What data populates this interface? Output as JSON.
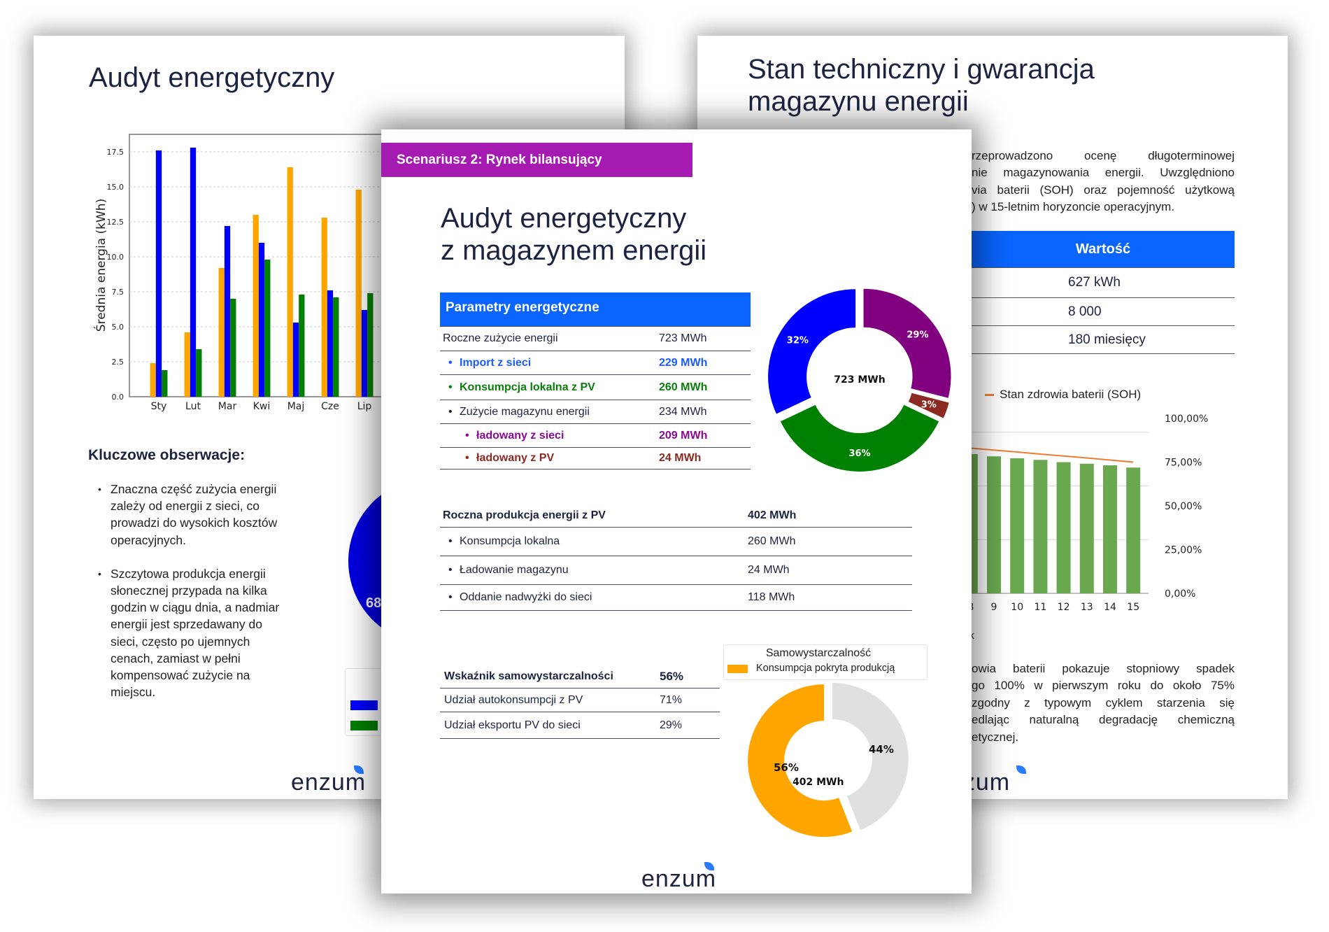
{
  "colors": {
    "orange": "#ffa500",
    "blue": "#0000ff",
    "green": "#008000",
    "purple": "#800080",
    "brown": "#8b2a22",
    "grey": "#e0e0e0",
    "header_blue": "#0a64ff",
    "banner_purple": "#a51ab1",
    "soh_bar": "#6aa84f",
    "soh_line": "#ed7d31"
  },
  "left_page": {
    "title": "Audyt energetyczny",
    "observations_heading": "Kluczowe obserwacje:",
    "observations": [
      [
        "Znaczna część zużycia energii",
        "zależy od energii z sieci, co",
        "prowadzi do wysokich kosztów",
        "operacyjnych."
      ],
      [
        "Szczytowa produkcja energii",
        "słonecznej przypada na kilka",
        "godzin w ciągu dnia, a nadmiar",
        "energii jest sprzedawany do",
        "sieci, często po ujemnych",
        "cenach, zamiast w pełni",
        "kompensować zużycie na",
        "miejscu."
      ]
    ],
    "pie_label": "68",
    "logo": "enzum"
  },
  "chart_data": [
    {
      "type": "bar",
      "ylabel": "Średnia energia (kWh)",
      "categories": [
        "Sty",
        "Lut",
        "Mar",
        "Kwi",
        "Maj",
        "Cze",
        "Lip"
      ],
      "series": [
        {
          "color": "#ffa500",
          "values": [
            2.4,
            4.6,
            9.2,
            13.0,
            16.4,
            12.8,
            14.8
          ]
        },
        {
          "color": "#0000ff",
          "values": [
            17.6,
            17.8,
            12.2,
            11.0,
            5.3,
            7.6,
            6.2
          ]
        },
        {
          "color": "#008000",
          "values": [
            1.9,
            3.4,
            7.0,
            9.8,
            7.3,
            7.1,
            7.4
          ]
        }
      ],
      "ylim": [
        0,
        18.75
      ],
      "yticks": [
        "0.0",
        "2.5",
        "5.0",
        "7.5",
        "10.0",
        "12.5",
        "15.0",
        "17.5"
      ],
      "grid": true
    },
    {
      "type": "pie",
      "center_label": "723 MWh",
      "slices": [
        {
          "label": "29%",
          "value": 29,
          "color": "#800080"
        },
        {
          "label": "3%",
          "value": 3,
          "color": "#8b2a22"
        },
        {
          "label": "36%",
          "value": 36,
          "color": "#008000"
        },
        {
          "label": "32%",
          "value": 32,
          "color": "#0000ff"
        }
      ]
    },
    {
      "type": "pie",
      "title": "Samowystarczalność",
      "legend": [
        "Konsumpcja pokryta produkcją"
      ],
      "center_label": "402 MWh",
      "slices": [
        {
          "label": "56%",
          "value": 56,
          "color": "#ffa500"
        },
        {
          "label": "44%",
          "value": 44,
          "color": "#e0e0e0"
        }
      ]
    },
    {
      "type": "bar",
      "legend": [
        "Stan zdrowia baterii (SOH)"
      ],
      "xlabel": "ok",
      "categories": [
        "8",
        "9",
        "10",
        "11",
        "12",
        "13",
        "14",
        "15"
      ],
      "bar_values": [
        79.6,
        78.3,
        77.2,
        76.3,
        75.0,
        74.1,
        73.2,
        71.9
      ],
      "line_values": [
        83.0,
        81.9,
        80.8,
        79.6,
        78.5,
        77.4,
        76.2,
        75.0
      ],
      "yticks": [
        "100,00%",
        "75,00%",
        "50,00%",
        "25,00%",
        "0,00%"
      ],
      "ylim": [
        0,
        100
      ],
      "grid": true
    }
  ],
  "center_page": {
    "banner": "Scenariusz 2: Rynek bilansujący",
    "title_lines": [
      "Audyt energetyczny",
      "z magazynem energii"
    ],
    "params_table": {
      "header": "Parametry energetyczne",
      "rows": [
        {
          "label": "Roczne zużycie energii",
          "value": "723 MWh"
        },
        {
          "label": "Import z sieci",
          "value": "229 MWh"
        },
        {
          "label": "Konsumpcja lokalna z PV",
          "value": "260 MWh"
        },
        {
          "label": "Zużycie magazynu energii",
          "value": "234 MWh"
        },
        {
          "label": "ładowany z sieci",
          "value": "209 MWh"
        },
        {
          "label": "ładowany z PV",
          "value": "24 MWh"
        }
      ]
    },
    "pv_table": {
      "header": {
        "label": "Roczna produkcja energii z PV",
        "value": "402 MWh"
      },
      "rows": [
        {
          "label": "Konsumpcja lokalna",
          "value": "260 MWh"
        },
        {
          "label": "Ładowanie magazynu",
          "value": "24 MWh"
        },
        {
          "label": "Oddanie nadwyżki do sieci",
          "value": "118 MWh"
        }
      ]
    },
    "self_table": {
      "header": {
        "label": "Wskaźnik samowystarczalności",
        "value": "56%"
      },
      "rows": [
        {
          "label": "Udział autokonsumpcji z PV",
          "value": "71%"
        },
        {
          "label": "Udział eksportu PV do sieci",
          "value": "29%"
        }
      ]
    },
    "logo": "enzum"
  },
  "right_page": {
    "title_lines": [
      "Stan techniczny i gwarancja",
      "magazynu energii"
    ],
    "intro_lines": [
      "rzeprowadzono ocenę długoterminowej",
      "nie magazynowania energii. Uwzględniono",
      "via baterii (SOH) oraz pojemność użytkową",
      ") w 15-letnim horyzoncie operacyjnym."
    ],
    "table": {
      "header": "Wartość",
      "values": [
        "627 kWh",
        "8 000",
        "180 miesięcy"
      ]
    },
    "summary_lines": [
      "owia baterii pokazuje stopniowy spadek",
      "go 100% w pierwszym roku do około 75%",
      "zgodny z typowym cyklem starzenia się",
      "edlając naturalną degradację chemiczną",
      "etycznej."
    ],
    "logo": "enzum"
  }
}
